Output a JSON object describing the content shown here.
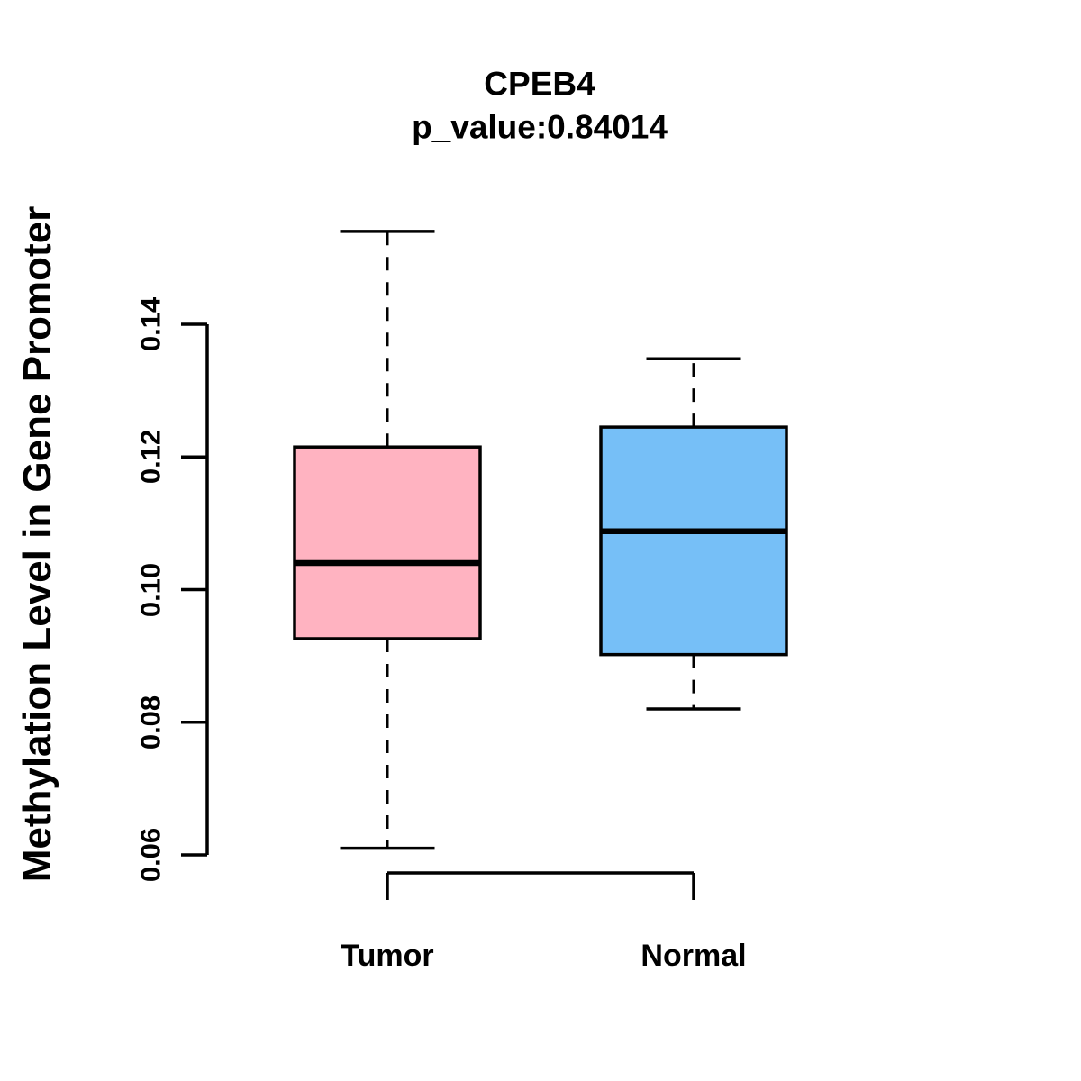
{
  "chart_data": {
    "type": "boxplot",
    "title": "CPEB4",
    "subtitle": "p_value:0.84014",
    "ylabel": "Methylation Level in Gene Promoter",
    "xlabel": "",
    "categories": [
      "Tumor",
      "Normal"
    ],
    "ytick_labels": [
      "0.06",
      "0.08",
      "0.10",
      "0.12",
      "0.14"
    ],
    "ytick_values": [
      0.06,
      0.08,
      0.1,
      0.12,
      0.14
    ],
    "ylim": [
      0.055,
      0.158
    ],
    "grid": false,
    "legend": "none",
    "orientation": "vertical",
    "series": [
      {
        "name": "Tumor",
        "lower_whisker": 0.061,
        "q1": 0.0926,
        "median": 0.104,
        "q3": 0.1215,
        "upper_whisker": 0.154,
        "fill_color": "#FFB3C1"
      },
      {
        "name": "Normal",
        "lower_whisker": 0.082,
        "q1": 0.0902,
        "median": 0.1088,
        "q3": 0.1245,
        "upper_whisker": 0.1348,
        "fill_color": "#76BFF7"
      }
    ],
    "stroke_color": "#000000"
  }
}
